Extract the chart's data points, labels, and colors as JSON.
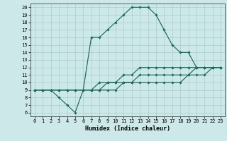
{
  "xlabel": "Humidex (Indice chaleur)",
  "xlim": [
    -0.5,
    23.5
  ],
  "ylim": [
    5.5,
    20.5
  ],
  "xticks": [
    0,
    1,
    2,
    3,
    4,
    5,
    6,
    7,
    8,
    9,
    10,
    11,
    12,
    13,
    14,
    15,
    16,
    17,
    18,
    19,
    20,
    21,
    22,
    23
  ],
  "yticks": [
    6,
    7,
    8,
    9,
    10,
    11,
    12,
    13,
    14,
    15,
    16,
    17,
    18,
    19,
    20
  ],
  "bg_color": "#cce8e8",
  "grid_color": "#aacccc",
  "line_color": "#1a6b5e",
  "series": [
    [
      0,
      9,
      1,
      9,
      2,
      9,
      3,
      8,
      4,
      7,
      5,
      6,
      6,
      9,
      7,
      16,
      8,
      16,
      9,
      17,
      10,
      18,
      11,
      19,
      12,
      20,
      13,
      20,
      14,
      20,
      15,
      19,
      16,
      17,
      17,
      15,
      18,
      14,
      19,
      14,
      20,
      12,
      21,
      12,
      22,
      12,
      23,
      12
    ],
    [
      0,
      9,
      1,
      9,
      2,
      9,
      3,
      9,
      4,
      9,
      5,
      9,
      6,
      9,
      7,
      9,
      8,
      10,
      9,
      10,
      10,
      10,
      11,
      11,
      12,
      11,
      13,
      12,
      14,
      12,
      15,
      12,
      16,
      12,
      17,
      12,
      18,
      12,
      19,
      12,
      20,
      12,
      21,
      12,
      22,
      12,
      23,
      12
    ],
    [
      0,
      9,
      1,
      9,
      2,
      9,
      3,
      9,
      4,
      9,
      5,
      9,
      6,
      9,
      7,
      9,
      8,
      9,
      9,
      10,
      10,
      10,
      11,
      10,
      12,
      10,
      13,
      11,
      14,
      11,
      15,
      11,
      16,
      11,
      17,
      11,
      18,
      11,
      19,
      11,
      20,
      12,
      21,
      12,
      22,
      12,
      23,
      12
    ],
    [
      0,
      9,
      1,
      9,
      2,
      9,
      3,
      9,
      4,
      9,
      5,
      9,
      6,
      9,
      7,
      9,
      8,
      9,
      9,
      9,
      10,
      9,
      11,
      10,
      12,
      10,
      13,
      10,
      14,
      10,
      15,
      10,
      16,
      10,
      17,
      10,
      18,
      10,
      19,
      11,
      20,
      11,
      21,
      11,
      22,
      12,
      23,
      12
    ]
  ]
}
